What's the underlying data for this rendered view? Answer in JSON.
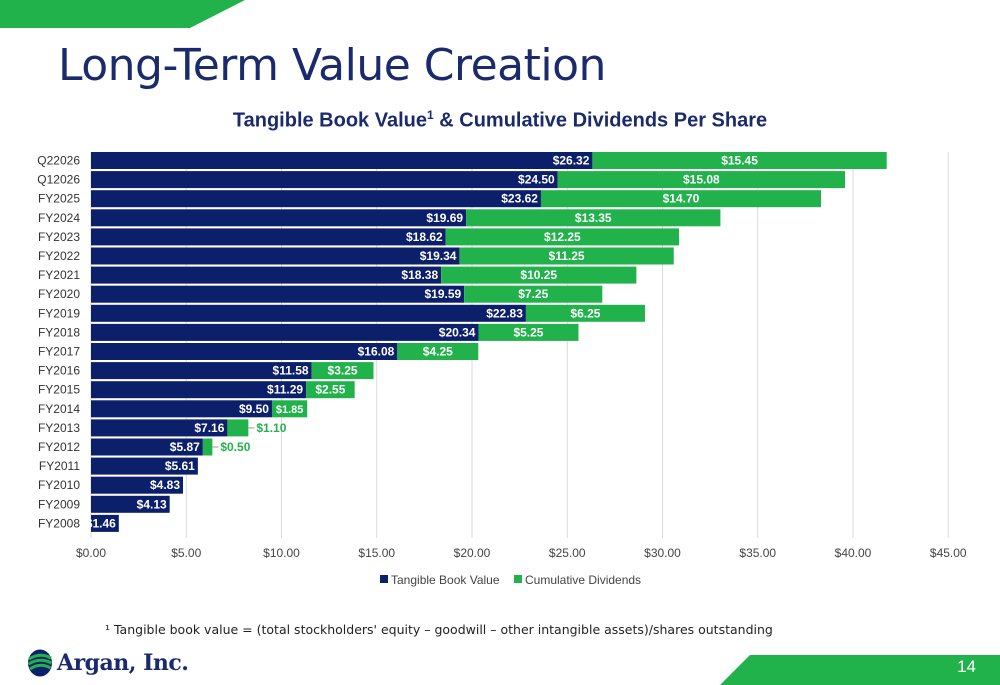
{
  "slide": {
    "title": "Long-Term Value Creation",
    "chart_title_main": "Tangible Book Value",
    "chart_title_sup": "1",
    "chart_title_rest": " & Cumulative Dividends Per Share",
    "footnote": "¹ Tangible book value = (total stockholders' equity – goodwill – other intangible assets)/shares outstanding",
    "logo_text": "Argan, Inc.",
    "page_number": "14",
    "colors": {
      "navy": "#0c1f6b",
      "green": "#21b24b",
      "title": "#1a2a6c"
    }
  },
  "chart_data": {
    "type": "bar",
    "orientation": "horizontal",
    "stacked": true,
    "categories": [
      "Q22026",
      "Q12026",
      "FY2025",
      "FY2024",
      "FY2023",
      "FY2022",
      "FY2021",
      "FY2020",
      "FY2019",
      "FY2018",
      "FY2017",
      "FY2016",
      "FY2015",
      "FY2014",
      "FY2013",
      "FY2012",
      "FY2011",
      "FY2010",
      "FY2009",
      "FY2008"
    ],
    "series": [
      {
        "name": "Tangible Book Value",
        "color": "#0c1f6b",
        "values": [
          26.32,
          24.5,
          23.62,
          19.69,
          18.62,
          19.34,
          18.38,
          19.59,
          22.83,
          20.34,
          16.08,
          11.58,
          11.29,
          9.5,
          7.16,
          5.87,
          5.61,
          4.83,
          4.13,
          1.46
        ],
        "labels": [
          "$26.32",
          "$24.50",
          "$23.62",
          "$19.69",
          "$18.62",
          "$19.34",
          "$18.38",
          "$19.59",
          "$22.83",
          "$20.34",
          "$16.08",
          "$11.58",
          "$11.29",
          "$9.50",
          "$7.16",
          "$5.87",
          "$5.61",
          "$4.83",
          "$4.13",
          "$1.46"
        ]
      },
      {
        "name": "Cumulative Dividends",
        "color": "#21b24b",
        "values": [
          15.45,
          15.08,
          14.7,
          13.35,
          12.25,
          11.25,
          10.25,
          7.25,
          6.25,
          5.25,
          4.25,
          3.25,
          2.55,
          1.85,
          1.1,
          0.5,
          0,
          0,
          0,
          0
        ],
        "labels": [
          "$15.45",
          "$15.08",
          "$14.70",
          "$13.35",
          "$12.25",
          "$11.25",
          "$10.25",
          "$7.25",
          "$6.25",
          "$5.25",
          "$4.25",
          "$3.25",
          "$2.55",
          "$1.85",
          "$1.10",
          "$0.50",
          "",
          "",
          "",
          ""
        ]
      }
    ],
    "xlim": [
      0,
      45
    ],
    "xticks": [
      0,
      5,
      10,
      15,
      20,
      25,
      30,
      35,
      40,
      45
    ],
    "xtick_labels": [
      "$0.00",
      "$5.00",
      "$10.00",
      "$15.00",
      "$20.00",
      "$25.00",
      "$30.00",
      "$35.00",
      "$40.00",
      "$45.00"
    ],
    "grid": true,
    "legend_position": "bottom"
  }
}
